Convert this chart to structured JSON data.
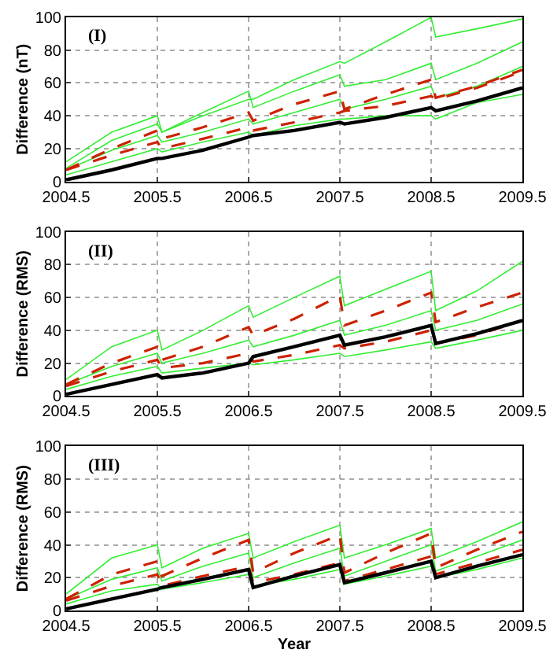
{
  "chart_data": [
    {
      "type": "line",
      "ylabel": "Difference (nT)",
      "annotations": [
        "(I)"
      ],
      "xlim": [
        2004.5,
        2009.5
      ],
      "xticks": [
        2004.5,
        2005.5,
        2006.5,
        2007.5,
        2008.5,
        2009.5
      ],
      "ylim": [
        0,
        100
      ],
      "yticks": [
        0,
        20,
        40,
        60,
        80,
        100
      ],
      "grid": true,
      "x": [
        2004.5,
        2005.0,
        2005.5,
        2005.55,
        2006.0,
        2006.5,
        2006.55,
        2007.0,
        2007.5,
        2007.55,
        2008.0,
        2008.5,
        2008.55,
        2009.0,
        2009.5
      ],
      "series": [
        {
          "color": "#33ee33",
          "line_style": "solid",
          "values": [
            12,
            30,
            40,
            30,
            42,
            55,
            45,
            55,
            65,
            58,
            62,
            72,
            62,
            72,
            85
          ]
        },
        {
          "color": "#33ee33",
          "line_style": "solid",
          "values": [
            8,
            25,
            35,
            30,
            40,
            50,
            50,
            62,
            73,
            72,
            85,
            100,
            88,
            93,
            99
          ]
        },
        {
          "color": "#33ee33",
          "line_style": "solid",
          "values": [
            7,
            19,
            28,
            24,
            30,
            38,
            35,
            42,
            50,
            44,
            50,
            58,
            51,
            58,
            70
          ]
        },
        {
          "color": "#33ee33",
          "line_style": "solid",
          "values": [
            4,
            12,
            20,
            18,
            24,
            30,
            28,
            34,
            38,
            38,
            40,
            40,
            38,
            48,
            53
          ]
        },
        {
          "color": "#cc2200",
          "line_style": "dashed",
          "values": [
            7,
            20,
            31,
            26,
            33,
            42,
            37,
            47,
            55,
            44,
            53,
            62,
            51,
            58,
            68
          ]
        },
        {
          "color": "#cc2200",
          "line_style": "dashed",
          "values": [
            7,
            16,
            24,
            20,
            26,
            33,
            31,
            36,
            42,
            43,
            46,
            52,
            50,
            57,
            67
          ]
        },
        {
          "color": "#000000",
          "line_style": "solid",
          "values": [
            1,
            7,
            14,
            14,
            19,
            27,
            28,
            31,
            36,
            35,
            39,
            45,
            43,
            49,
            57
          ]
        }
      ]
    },
    {
      "type": "line",
      "ylabel": "Difference (RMS)",
      "annotations": [
        "(II)"
      ],
      "xlim": [
        2004.5,
        2009.5
      ],
      "xticks": [
        2004.5,
        2005.5,
        2006.5,
        2007.5,
        2008.5,
        2009.5
      ],
      "ylim": [
        0,
        100
      ],
      "yticks": [
        0,
        20,
        40,
        60,
        80,
        100
      ],
      "grid": true,
      "x": [
        2004.5,
        2005.0,
        2005.5,
        2005.55,
        2006.0,
        2006.5,
        2006.55,
        2007.0,
        2007.5,
        2007.55,
        2008.0,
        2008.5,
        2008.55,
        2009.0,
        2009.5
      ],
      "series": [
        {
          "color": "#33ee33",
          "line_style": "solid",
          "values": [
            10,
            30,
            40,
            28,
            40,
            55,
            48,
            60,
            73,
            55,
            65,
            76,
            52,
            64,
            82
          ]
        },
        {
          "color": "#33ee33",
          "line_style": "solid",
          "values": [
            7,
            18,
            26,
            20,
            26,
            34,
            30,
            37,
            46,
            37,
            43,
            52,
            40,
            46,
            56
          ]
        },
        {
          "color": "#33ee33",
          "line_style": "solid",
          "values": [
            4,
            12,
            18,
            14,
            17,
            20,
            19,
            22,
            26,
            24,
            28,
            33,
            29,
            34,
            40
          ]
        },
        {
          "color": "#cc2200",
          "line_style": "dashed",
          "values": [
            7,
            20,
            30,
            22,
            30,
            42,
            37,
            47,
            61,
            43,
            52,
            63,
            45,
            54,
            63
          ]
        },
        {
          "color": "#cc2200",
          "line_style": "dashed",
          "values": [
            6,
            15,
            22,
            17,
            20,
            26,
            21,
            25,
            31,
            29,
            33,
            40,
            32,
            37,
            46
          ]
        },
        {
          "color": "#000000",
          "line_style": "solid",
          "values": [
            1,
            7,
            13,
            11,
            14,
            20,
            24,
            30,
            37,
            31,
            36,
            43,
            32,
            38,
            46
          ]
        }
      ]
    },
    {
      "type": "line",
      "xlabel": "Year",
      "ylabel": "Difference (RMS)",
      "annotations": [
        "(III)"
      ],
      "xlim": [
        2004.5,
        2009.5
      ],
      "xticks": [
        2004.5,
        2005.5,
        2006.5,
        2007.5,
        2008.5,
        2009.5
      ],
      "ylim": [
        0,
        100
      ],
      "yticks": [
        0,
        20,
        40,
        60,
        80,
        100
      ],
      "grid": true,
      "x": [
        2004.5,
        2005.0,
        2005.5,
        2005.55,
        2006.0,
        2006.5,
        2006.55,
        2007.0,
        2007.5,
        2007.55,
        2008.0,
        2008.5,
        2008.55,
        2009.0,
        2009.5
      ],
      "series": [
        {
          "color": "#33ee33",
          "line_style": "solid",
          "values": [
            10,
            32,
            40,
            26,
            38,
            47,
            32,
            42,
            52,
            32,
            40,
            50,
            32,
            42,
            54
          ]
        },
        {
          "color": "#33ee33",
          "line_style": "solid",
          "values": [
            7,
            19,
            26,
            18,
            27,
            35,
            20,
            29,
            38,
            21,
            30,
            40,
            24,
            33,
            43
          ]
        },
        {
          "color": "#33ee33",
          "line_style": "solid",
          "values": [
            4,
            12,
            16,
            13,
            17,
            22,
            15,
            19,
            25,
            16,
            21,
            27,
            20,
            25,
            32
          ]
        },
        {
          "color": "#cc2200",
          "line_style": "dashed",
          "values": [
            7,
            22,
            30,
            21,
            32,
            43,
            23,
            35,
            46,
            23,
            35,
            47,
            26,
            37,
            48
          ]
        },
        {
          "color": "#cc2200",
          "line_style": "dashed",
          "values": [
            6,
            15,
            22,
            15,
            21,
            27,
            17,
            22,
            29,
            18,
            25,
            33,
            22,
            29,
            37
          ]
        },
        {
          "color": "#000000",
          "line_style": "solid",
          "values": [
            1,
            7,
            13,
            14,
            19,
            25,
            14,
            21,
            28,
            17,
            23,
            30,
            20,
            27,
            34
          ]
        }
      ]
    }
  ]
}
